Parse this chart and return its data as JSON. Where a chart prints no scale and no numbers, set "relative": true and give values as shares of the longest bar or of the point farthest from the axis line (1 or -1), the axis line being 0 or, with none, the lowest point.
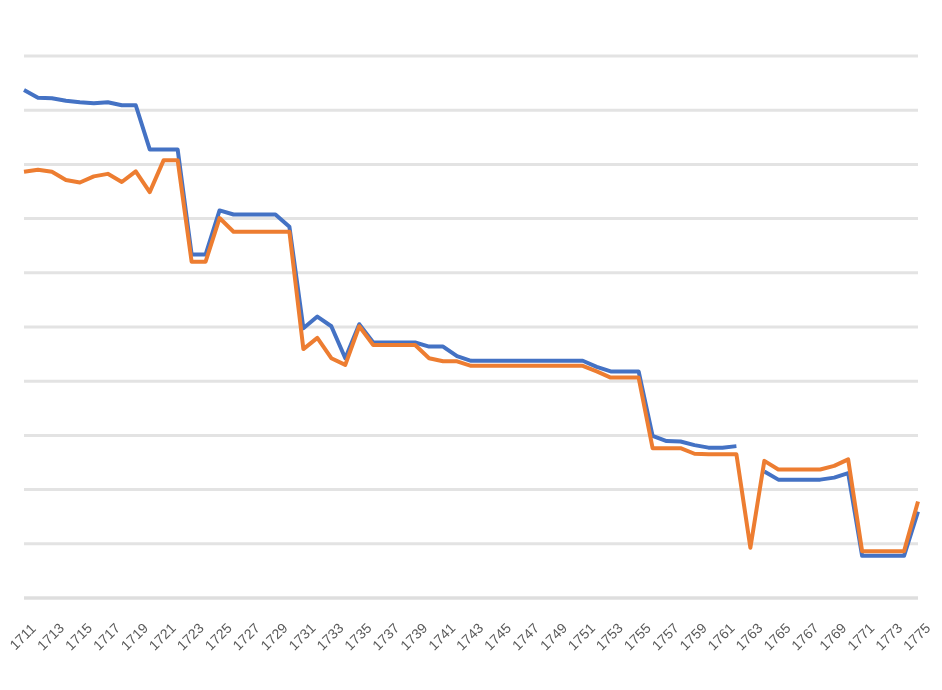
{
  "chart_data": {
    "type": "line",
    "relative": true,
    "grid": "y",
    "legend": false,
    "marker": "none",
    "line_style": "solid",
    "categories": [
      "1711",
      null,
      "1713",
      null,
      "1715",
      null,
      "1717",
      null,
      "1719",
      null,
      "1721",
      null,
      "1723",
      null,
      "1725",
      null,
      "1727",
      null,
      "1729",
      null,
      "1731",
      null,
      "1733",
      null,
      "1735",
      null,
      "1737",
      null,
      "1739",
      null,
      "1741",
      null,
      "1743",
      null,
      "1745",
      null,
      "1747",
      null,
      "1749",
      null,
      "1751",
      null,
      "1753",
      null,
      "1755",
      null,
      "1757",
      null,
      "1759",
      null,
      "1761",
      null,
      "1763",
      null,
      "1765",
      null,
      "1767",
      null,
      "1769",
      null,
      "1771",
      null,
      "1773",
      null,
      "1775"
    ],
    "series": [
      {
        "color": "#4472c4",
        "values": [
          1.0,
          0.985,
          0.984,
          0.979,
          0.976,
          0.974,
          0.976,
          0.97,
          0.97,
          0.883,
          0.883,
          0.883,
          0.676,
          0.676,
          0.763,
          0.755,
          0.755,
          0.755,
          0.755,
          0.731,
          0.531,
          0.554,
          0.535,
          0.472,
          0.539,
          0.503,
          0.503,
          0.503,
          0.503,
          0.495,
          0.495,
          0.476,
          0.467,
          0.467,
          0.467,
          0.467,
          0.467,
          0.467,
          0.467,
          0.467,
          0.467,
          0.455,
          0.446,
          0.446,
          0.446,
          0.319,
          0.309,
          0.308,
          0.301,
          0.296,
          0.296,
          0.299,
          null,
          0.249,
          0.233,
          0.233,
          0.233,
          0.233,
          0.237,
          0.246,
          0.083,
          0.083,
          0.083,
          0.083,
          0.17
        ]
      },
      {
        "color": "#ed7d31",
        "values": [
          0.839,
          0.843,
          0.839,
          0.823,
          0.818,
          0.83,
          0.835,
          0.819,
          0.84,
          0.799,
          0.862,
          0.862,
          0.662,
          0.662,
          0.748,
          0.721,
          0.721,
          0.721,
          0.721,
          0.721,
          0.49,
          0.512,
          0.472,
          0.459,
          0.535,
          0.498,
          0.498,
          0.498,
          0.498,
          0.472,
          0.466,
          0.466,
          0.457,
          0.457,
          0.457,
          0.457,
          0.457,
          0.457,
          0.457,
          0.457,
          0.457,
          0.446,
          0.434,
          0.434,
          0.434,
          0.295,
          0.295,
          0.295,
          0.284,
          0.283,
          0.283,
          0.283,
          0.099,
          0.27,
          0.253,
          0.253,
          0.253,
          0.253,
          0.26,
          0.273,
          0.092,
          0.092,
          0.092,
          0.092,
          0.19
        ]
      }
    ]
  }
}
